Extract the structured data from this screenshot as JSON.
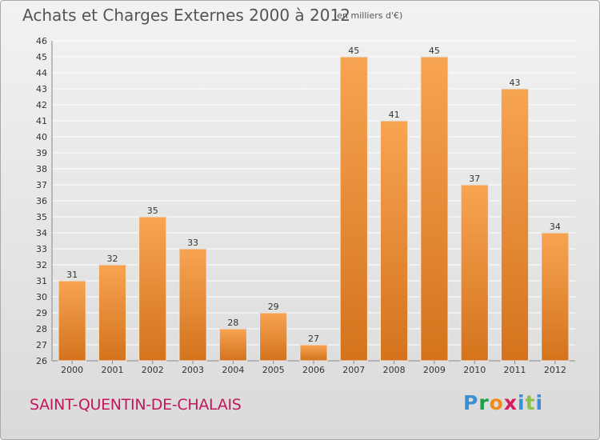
{
  "header": {
    "title": "Achats et Charges Externes 2000 à 2012",
    "unit": "(en milliers d'€)"
  },
  "footer": {
    "commune": "SAINT-QUENTIN-DE-CHALAIS",
    "logo": [
      "P",
      "r",
      "o",
      "x",
      "i",
      "t",
      "i"
    ]
  },
  "colors": {
    "bar_top": "#f7a452",
    "bar_bottom": "#d4731c",
    "commune_text": "#c2185b",
    "grid": "#ffffff"
  },
  "chart_data": {
    "type": "bar",
    "title": "Achats et Charges Externes 2000 à 2012",
    "subtitle": "(en milliers d'€)",
    "categories": [
      "2000",
      "2001",
      "2002",
      "2003",
      "2004",
      "2005",
      "2006",
      "2007",
      "2008",
      "2009",
      "2010",
      "2011",
      "2012"
    ],
    "values": [
      31,
      32,
      35,
      33,
      28,
      29,
      27,
      45,
      41,
      45,
      37,
      43,
      34
    ],
    "ylim": [
      26,
      46
    ],
    "yticks": [
      26,
      27,
      28,
      29,
      30,
      31,
      32,
      33,
      34,
      35,
      36,
      37,
      38,
      39,
      40,
      41,
      42,
      43,
      44,
      45,
      46
    ],
    "grid": true,
    "legend": "none"
  }
}
